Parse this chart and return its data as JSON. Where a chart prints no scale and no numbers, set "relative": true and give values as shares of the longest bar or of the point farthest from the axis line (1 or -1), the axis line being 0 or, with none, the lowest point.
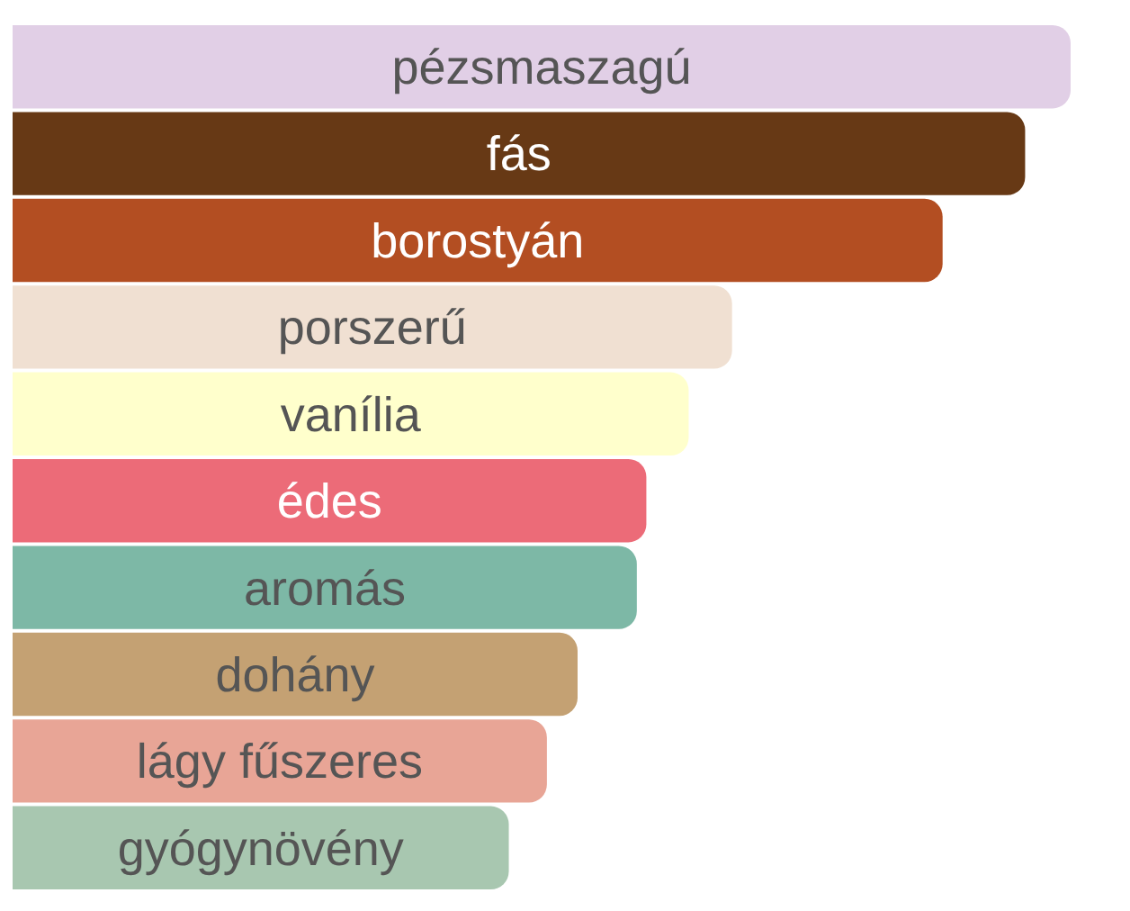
{
  "chart_data": {
    "type": "bar",
    "orientation": "horizontal",
    "relative": true,
    "categories": [
      "pézsmaszagú",
      "fás",
      "borostyán",
      "porszerű",
      "vanília",
      "édes",
      "aromás",
      "dohány",
      "lágy fűszeres",
      "gyógynövény"
    ],
    "values": [
      1,
      0.957,
      0.879,
      0.68,
      0.639,
      0.599,
      0.59,
      0.534,
      0.505,
      0.469
    ],
    "colors": [
      "#e1cfe6",
      "#673915",
      "#b34e22",
      "#f0e0d2",
      "#ffffcc",
      "#ec6b78",
      "#7db8a6",
      "#c4a173",
      "#e8a596",
      "#a8c7b0"
    ]
  }
}
